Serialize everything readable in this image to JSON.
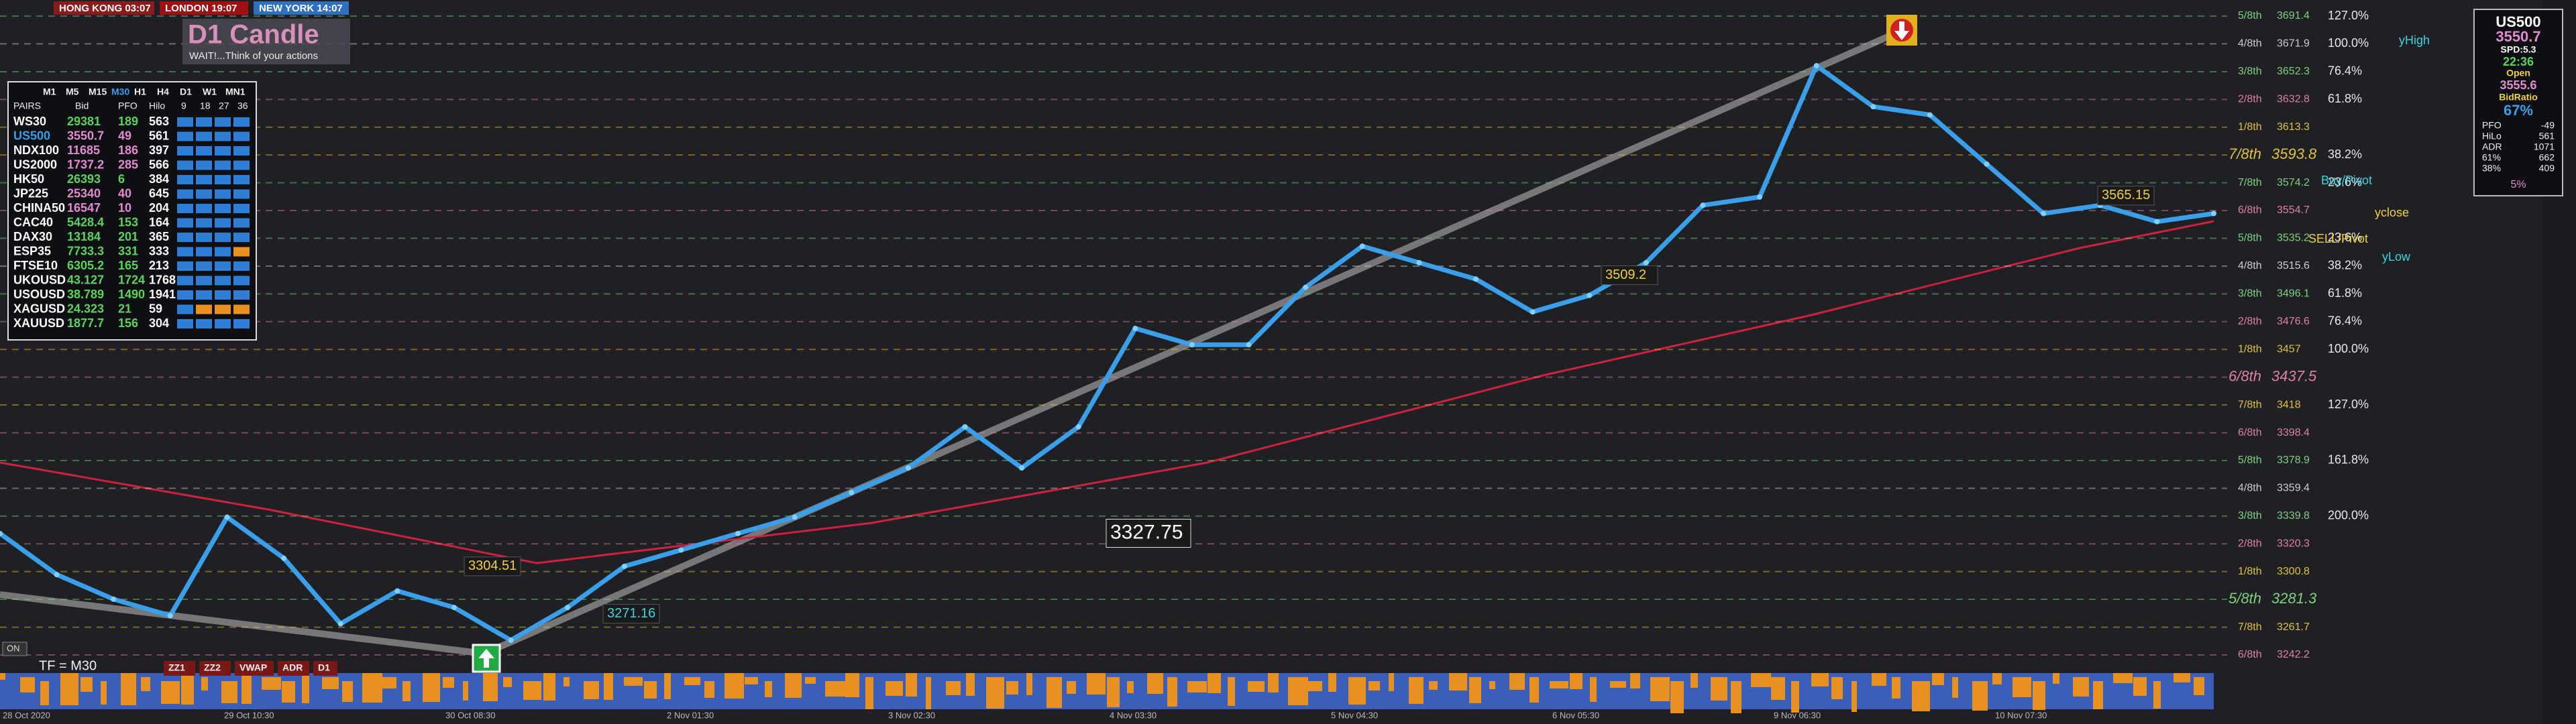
{
  "sessions": [
    "HONG KONG 03:07",
    "LONDON 19:07",
    "NEW YORK 14:07"
  ],
  "logo": {
    "title": "D1 Candle",
    "tagline": "WAIT!...Think of your actions"
  },
  "dashboard": {
    "timeframes": [
      "M1",
      "M5",
      "M15",
      "M30",
      "H1",
      "H4",
      "D1",
      "W1",
      "MN1"
    ],
    "columns": [
      "PAIRS",
      "Bid",
      "PFO",
      "Hilo"
    ],
    "bar_labels": [
      "9",
      "18",
      "27",
      "36"
    ],
    "rows": [
      {
        "pair": "WS30",
        "bid": "29381",
        "pfo": "189",
        "hilo": "563",
        "color": "#5bd35b"
      },
      {
        "pair": "US500",
        "bid": "3550.7",
        "pfo": "49",
        "hilo": "561",
        "color": "#e28bd0"
      },
      {
        "pair": "NDX100",
        "bid": "11685",
        "pfo": "186",
        "hilo": "397",
        "color": "#e28bd0"
      },
      {
        "pair": "US2000",
        "bid": "1737.2",
        "pfo": "285",
        "hilo": "566",
        "color": "#e28bd0"
      },
      {
        "pair": "HK50",
        "bid": "26393",
        "pfo": "6",
        "hilo": "384",
        "color": "#5bd35b"
      },
      {
        "pair": "JP225",
        "bid": "25340",
        "pfo": "40",
        "hilo": "645",
        "color": "#e28bd0"
      },
      {
        "pair": "CHINA50",
        "bid": "16547",
        "pfo": "10",
        "hilo": "204",
        "color": "#e28bd0"
      },
      {
        "pair": "CAC40",
        "bid": "5428.4",
        "pfo": "153",
        "hilo": "164",
        "color": "#5bd35b"
      },
      {
        "pair": "DAX30",
        "bid": "13184",
        "pfo": "201",
        "hilo": "365",
        "color": "#5bd35b"
      },
      {
        "pair": "ESP35",
        "bid": "7733.3",
        "pfo": "331",
        "hilo": "333",
        "color": "#5bd35b"
      },
      {
        "pair": "FTSE10",
        "bid": "6305.2",
        "pfo": "165",
        "hilo": "213",
        "color": "#5bd35b"
      },
      {
        "pair": "UKOUSD",
        "bid": "43.127",
        "pfo": "1724",
        "hilo": "1768",
        "color": "#5bd35b"
      },
      {
        "pair": "USOUSD",
        "bid": "38.789",
        "pfo": "1490",
        "hilo": "1941",
        "color": "#5bd35b"
      },
      {
        "pair": "XAGUSD",
        "bid": "24.323",
        "pfo": "21",
        "hilo": "59",
        "color": "#5bd35b"
      },
      {
        "pair": "XAUUSD",
        "bid": "1877.7",
        "pfo": "156",
        "hilo": "304",
        "color": "#5bd35b"
      }
    ]
  },
  "price_chart": {
    "closes": [
      3327.6,
      3298.7,
      3281.4,
      3269.8,
      3339.1,
      3310.2,
      3264.1,
      3287.2,
      3275.6,
      3252.5,
      3275.6,
      3304.5,
      3316.0,
      3327.6,
      3339.1,
      3356.4,
      3373.7,
      3402.6,
      3373.7,
      3402.6,
      3471.8,
      3460.3,
      3460.3,
      3500.7,
      3529.6,
      3518.0,
      3506.5,
      3483.4,
      3495.0,
      3518.0,
      3558.4,
      3564.2,
      3656.5,
      3627.7,
      3621.9,
      3587.3,
      3552.6,
      3558.4,
      3546.9,
      3552.6
    ],
    "color": "#3a9ee8",
    "levels": [
      {
        "label": "5/8th",
        "price": 3691.4,
        "color": "#7fd07f",
        "fib": "127.0%"
      },
      {
        "label": "4/8th",
        "price": 3671.9,
        "color": "#cccccc",
        "fib": "100.0%"
      },
      {
        "label": "3/8th",
        "price": 3652.3,
        "color": "#7fd07f",
        "fib": "76.4%"
      },
      {
        "label": "2/8th",
        "price": 3632.8,
        "color": "#e080a0",
        "fib": "61.8%"
      },
      {
        "label": "1/8th",
        "price": 3613.3,
        "color": "#e0c040"
      },
      {
        "label": "7/8th",
        "price": 3593.8,
        "color": "#e0c040",
        "major": true,
        "fib": "38.2%"
      },
      {
        "label": "7/8th",
        "price": 3574.2,
        "color": "#7fd07f",
        "fib": "23.6%"
      },
      {
        "label": "6/8th",
        "price": 3554.7,
        "color": "#e080a0"
      },
      {
        "label": "5/8th",
        "price": 3535.2,
        "color": "#7fd07f",
        "fib": "23.6%"
      },
      {
        "label": "4/8th",
        "price": 3515.6,
        "color": "#cccccc",
        "fib": "38.2%"
      },
      {
        "label": "3/8th",
        "price": 3496.1,
        "color": "#7fd07f",
        "fib": "61.8%"
      },
      {
        "label": "2/8th",
        "price": 3476.6,
        "color": "#e080a0",
        "fib": "76.4%"
      },
      {
        "label": "1/8th",
        "price": 3457.0,
        "color": "#e0c040",
        "fib": "100.0%"
      },
      {
        "label": "6/8th",
        "price": 3437.5,
        "color": "#e080a0",
        "major": true
      },
      {
        "label": "7/8th",
        "price": 3418.0,
        "color": "#e0c040",
        "fib": "127.0%"
      },
      {
        "label": "6/8th",
        "price": 3398.4,
        "color": "#e080a0"
      },
      {
        "label": "5/8th",
        "price": 3378.9,
        "color": "#7fd07f",
        "fib": "161.8%"
      },
      {
        "label": "4/8th",
        "price": 3359.4,
        "color": "#cccccc"
      },
      {
        "label": "3/8th",
        "price": 3339.8,
        "color": "#7fd07f",
        "fib": "200.0%"
      },
      {
        "label": "2/8th",
        "price": 3320.3,
        "color": "#e080a0"
      },
      {
        "label": "1/8th",
        "price": 3300.8,
        "color": "#e0c040"
      },
      {
        "label": "5/8th",
        "price": 3281.3,
        "color": "#7fd07f",
        "major": true
      },
      {
        "label": "7/8th",
        "price": 3261.7,
        "color": "#e0c040"
      },
      {
        "label": "6/8th",
        "price": 3242.2,
        "color": "#e080a0"
      }
    ],
    "annotations": [
      {
        "price": 3327.75,
        "color": "#ffffff"
      },
      {
        "price": 3304.51,
        "color": "#f0d040"
      },
      {
        "price": 3271.16,
        "color": "#40d0e0"
      },
      {
        "price": 3509.2,
        "color": "#f0d040"
      },
      {
        "price": 3565.15,
        "color": "#f0d040"
      }
    ],
    "side_labels": [
      {
        "text": "yHigh",
        "color": "#40d0e0"
      },
      {
        "text": "Buy/Pivot",
        "color": "#40d0e0"
      },
      {
        "text": "yclose",
        "color": "#f0d040"
      },
      {
        "text": "SELL/Pivot",
        "color": "#f0d040"
      },
      {
        "text": "yLow",
        "color": "#40d0e0"
      }
    ]
  },
  "info_panel": {
    "symbol": "US500",
    "bid": "3550.7",
    "spread": "SPD:5.3",
    "timer": "22:36",
    "open_label": "Open",
    "open": "3555.6",
    "ratio_label": "BidRatio",
    "ratio": "67%",
    "stats": [
      [
        "PFO",
        "-49"
      ],
      [
        "HiLo",
        "561"
      ],
      [
        "ADR",
        "1071"
      ],
      [
        "61%",
        "662"
      ],
      [
        "38%",
        "409"
      ]
    ],
    "footer": "5%"
  },
  "footer": {
    "timeframe": "TF = M30",
    "on": "ON",
    "buttons": [
      "ZZ1",
      "ZZ2",
      "VWAP",
      "ADR",
      "D1"
    ],
    "time_labels": [
      "28 Oct 2020",
      "29 Oct 10:30",
      "30 Oct 08:30",
      "2 Nov 01:30",
      "3 Nov 02:30",
      "4 Nov 03:30",
      "5 Nov 04:30",
      "6 Nov 05:30",
      "9 Nov 06:30",
      "10 Nov 07:30"
    ]
  }
}
